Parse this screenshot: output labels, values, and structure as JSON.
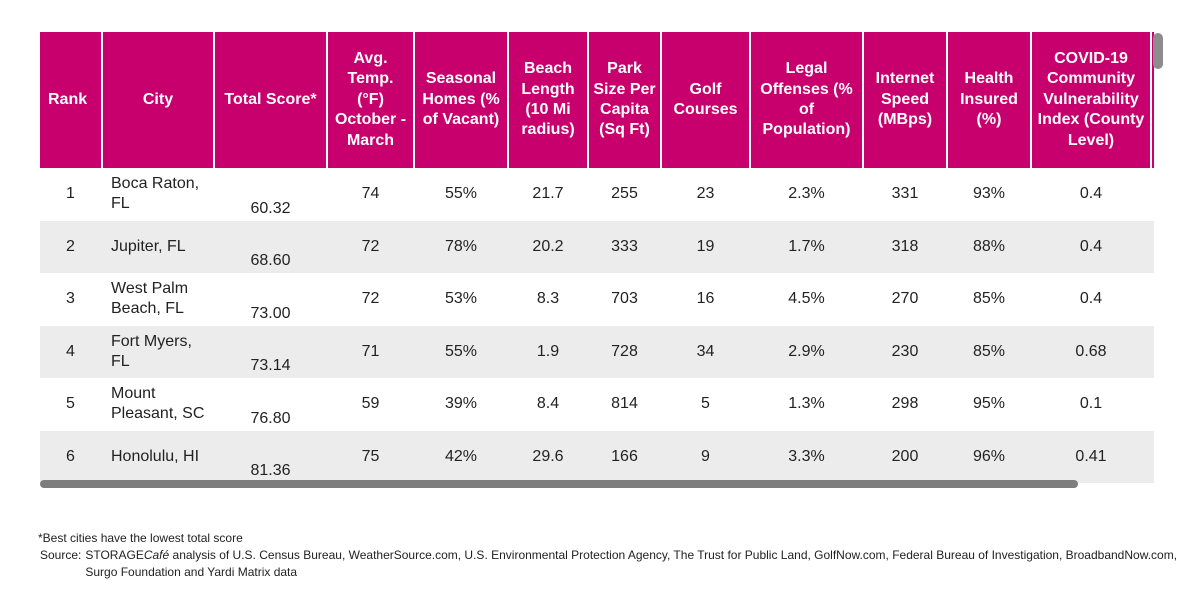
{
  "table": {
    "headers": {
      "rank": "Rank",
      "city": "City",
      "total_score": "Total Score*",
      "avg_temp": "Avg. Temp. (°F) October - March",
      "seasonal_homes": "Seasonal Homes (% of Vacant)",
      "beach_length": "Beach Length (10 Mi radius)",
      "park_size": "Park Size Per Capita (Sq Ft)",
      "golf_courses": "Golf Courses",
      "legal_offenses": "Legal Offenses (% of Population)",
      "internet_speed": "Internet Speed (MBps)",
      "health_insured": "Health Insured (%)",
      "covid_index": "COVID-19 Community Vulnerability Index (County Level)"
    },
    "rows": [
      {
        "rank": "1",
        "city": "Boca Raton, FL",
        "score": "60.32",
        "temp": "74",
        "seasonal": "55%",
        "beach": "21.7",
        "park": "255",
        "golf": "23",
        "legal": "2.3%",
        "internet": "331",
        "health": "93%",
        "covid": "0.4"
      },
      {
        "rank": "2",
        "city": "Jupiter, FL",
        "score": "68.60",
        "temp": "72",
        "seasonal": "78%",
        "beach": "20.2",
        "park": "333",
        "golf": "19",
        "legal": "1.7%",
        "internet": "318",
        "health": "88%",
        "covid": "0.4"
      },
      {
        "rank": "3",
        "city": "West Palm Beach, FL",
        "score": "73.00",
        "temp": "72",
        "seasonal": "53%",
        "beach": "8.3",
        "park": "703",
        "golf": "16",
        "legal": "4.5%",
        "internet": "270",
        "health": "85%",
        "covid": "0.4"
      },
      {
        "rank": "4",
        "city": "Fort Myers, FL",
        "score": "73.14",
        "temp": "71",
        "seasonal": "55%",
        "beach": "1.9",
        "park": "728",
        "golf": "34",
        "legal": "2.9%",
        "internet": "230",
        "health": "85%",
        "covid": "0.68"
      },
      {
        "rank": "5",
        "city": "Mount Pleasant, SC",
        "score": "76.80",
        "temp": "59",
        "seasonal": "39%",
        "beach": "8.4",
        "park": "814",
        "golf": "5",
        "legal": "1.3%",
        "internet": "298",
        "health": "95%",
        "covid": "0.1"
      },
      {
        "rank": "6",
        "city": "Honolulu, HI",
        "score": "81.36",
        "temp": "75",
        "seasonal": "42%",
        "beach": "29.6",
        "park": "166",
        "golf": "9",
        "legal": "3.3%",
        "internet": "200",
        "health": "96%",
        "covid": "0.41"
      }
    ]
  },
  "footnote": "*Best cities have the lowest total score",
  "source": {
    "label": "Source:",
    "brand_plain": "STORAGE",
    "brand_italic": "Café",
    "text": " analysis of U.S. Census Bureau, WeatherSource.com, U.S.  Environmental Protection Agency, The Trust for Public Land, GolfNow.com, Federal Bureau of Investigation, BroadbandNow.com, Surgo Foundation and Yardi Matrix data"
  },
  "colors": {
    "header_bg": "#c8006e",
    "stripe_bg": "#ececec",
    "scrollbar": "#7d7d7d"
  }
}
